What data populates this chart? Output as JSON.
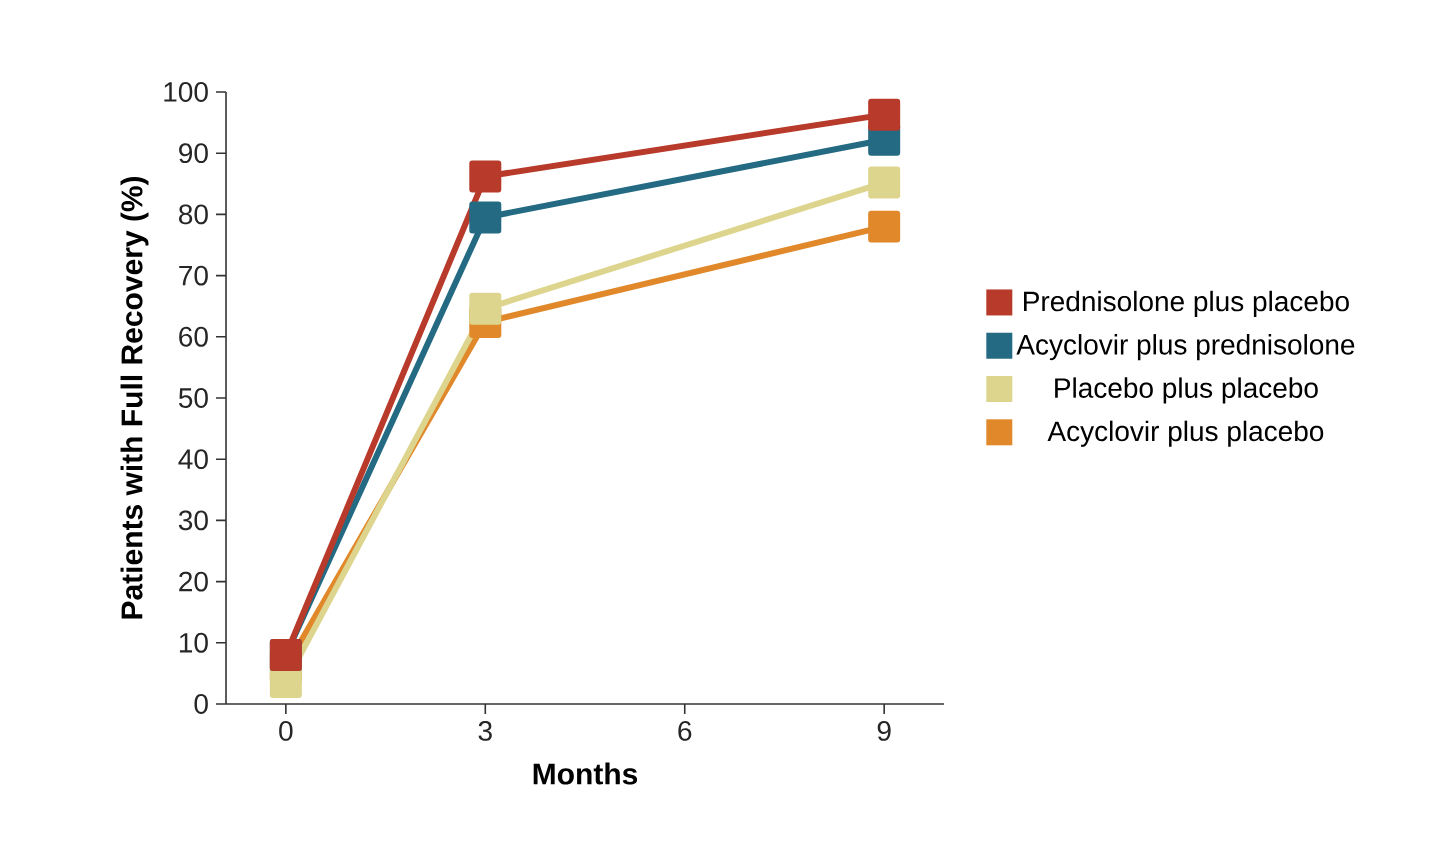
{
  "chart_data": {
    "type": "line",
    "xlabel": "Months",
    "ylabel": "Patients with Full Recovery (%)",
    "x": [
      0,
      3,
      9
    ],
    "xlim": [
      -0.9,
      9.9
    ],
    "xticks": [
      0,
      3,
      6,
      9
    ],
    "ylim": [
      0,
      100
    ],
    "yticks": [
      0,
      10,
      20,
      30,
      40,
      50,
      60,
      70,
      80,
      90,
      100
    ],
    "marker": "square",
    "line_style": "solid",
    "legend": "right",
    "grid": false,
    "series": [
      {
        "name": "Prednisolone plus placebo",
        "color": "#b83a2b",
        "values": [
          8,
          86.2,
          96.3
        ]
      },
      {
        "name": "Acyclovir plus prednisolone",
        "color": "#236a82",
        "values": [
          8,
          79.5,
          92.2
        ]
      },
      {
        "name": "Placebo plus placebo",
        "color": "#ddd58e",
        "values": [
          3.6,
          64.6,
          85.2
        ]
      },
      {
        "name": "Acyclovir plus placebo",
        "color": "#e0882a",
        "values": [
          6,
          62.4,
          78.0
        ]
      }
    ]
  }
}
